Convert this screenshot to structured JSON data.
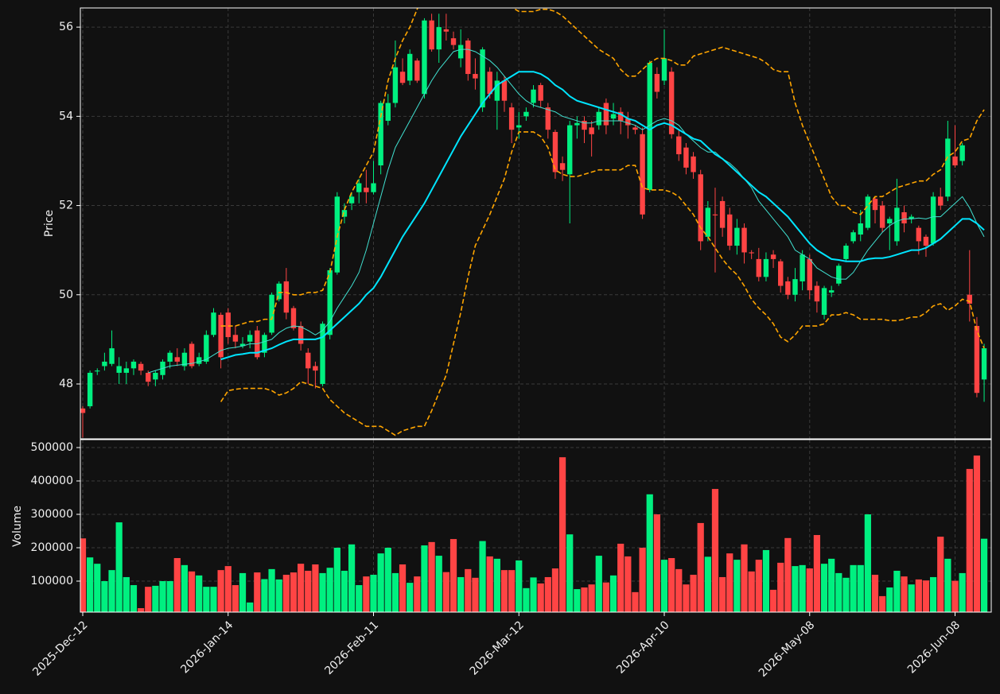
{
  "chart_data": {
    "type": "candlestick",
    "grid": true,
    "up_color": "#00f080",
    "down_color": "#ff4444",
    "ylabel": "Price",
    "ylim": [
      46.77,
      56.43
    ],
    "yticks": [
      48,
      50,
      52,
      54,
      56
    ],
    "categories": [
      "2025-Dec-12",
      null,
      null,
      null,
      null,
      null,
      null,
      null,
      null,
      null,
      null,
      null,
      null,
      null,
      null,
      null,
      null,
      null,
      null,
      null,
      "2026-Jan-14",
      null,
      null,
      null,
      null,
      null,
      null,
      null,
      null,
      null,
      null,
      null,
      null,
      null,
      null,
      null,
      null,
      null,
      null,
      null,
      "2026-Feb-11",
      null,
      null,
      null,
      null,
      null,
      null,
      null,
      null,
      null,
      null,
      null,
      null,
      null,
      null,
      null,
      null,
      null,
      null,
      null,
      "2026-Mar-12",
      null,
      null,
      null,
      null,
      null,
      null,
      null,
      null,
      null,
      null,
      null,
      null,
      null,
      null,
      null,
      null,
      null,
      null,
      null,
      "2026-Apr-10",
      null,
      null,
      null,
      null,
      null,
      null,
      null,
      null,
      null,
      null,
      null,
      null,
      null,
      null,
      null,
      null,
      null,
      null,
      null,
      "2026-May-08",
      null,
      null,
      null,
      null,
      null,
      null,
      null,
      null,
      null,
      null,
      null,
      null,
      null,
      null,
      null,
      null,
      null,
      null,
      null,
      "2026-Jun-08",
      null,
      null,
      null,
      null
    ],
    "open": [
      47.45,
      47.5,
      48.28,
      48.4,
      48.45,
      48.25,
      48.25,
      48.35,
      48.45,
      48.25,
      48.1,
      48.2,
      48.5,
      48.6,
      48.4,
      48.9,
      48.45,
      48.5,
      49.1,
      49.55,
      49.6,
      49.1,
      48.85,
      48.95,
      49.2,
      48.7,
      49.15,
      49.9,
      50.3,
      49.7,
      49.3,
      48.7,
      48.4,
      48.0,
      49.1,
      50.5,
      51.75,
      52.05,
      52.3,
      52.4,
      52.3,
      52.9,
      53.9,
      54.3,
      55.0,
      54.8,
      55.25,
      54.5,
      56.15,
      55.5,
      55.95,
      55.75,
      55.3,
      55.7,
      54.95,
      54.2,
      55.0,
      54.35,
      54.8,
      54.2,
      53.75,
      54.0,
      54.3,
      54.7,
      54.2,
      53.65,
      52.95,
      52.7,
      53.8,
      53.9,
      53.75,
      53.8,
      54.3,
      53.95,
      54.1,
      53.95,
      53.75,
      53.6,
      52.35,
      54.95,
      54.8,
      55.0,
      53.55,
      53.3,
      53.1,
      52.7,
      51.3,
      51.8,
      52.1,
      51.8,
      51.1,
      51.5,
      50.95,
      50.8,
      50.4,
      50.9,
      50.75,
      50.3,
      50.0,
      50.3,
      50.8,
      50.2,
      49.55,
      50.05,
      50.25,
      50.8,
      51.2,
      51.35,
      51.5,
      52.15,
      52.0,
      51.6,
      51.2,
      51.85,
      51.7,
      51.5,
      51.3,
      51.15,
      52.2,
      52.2,
      53.1,
      53.0,
      50.0,
      49.3,
      48.1
    ],
    "high": [
      47.5,
      48.3,
      48.35,
      48.7,
      49.2,
      48.6,
      48.5,
      48.55,
      48.5,
      48.3,
      48.3,
      48.55,
      48.75,
      48.8,
      48.8,
      48.95,
      48.7,
      49.2,
      49.7,
      49.6,
      49.7,
      49.3,
      49.05,
      49.2,
      49.3,
      49.15,
      50.05,
      50.3,
      50.6,
      49.75,
      49.4,
      48.8,
      48.5,
      49.4,
      50.6,
      52.3,
      52.05,
      52.3,
      52.6,
      52.8,
      53.0,
      54.35,
      54.5,
      55.7,
      55.3,
      55.5,
      55.3,
      56.2,
      56.3,
      56.3,
      56.3,
      55.9,
      55.95,
      55.75,
      55.3,
      55.55,
      55.1,
      55.0,
      54.9,
      54.3,
      54.1,
      54.2,
      54.7,
      54.75,
      54.3,
      53.7,
      53.1,
      53.9,
      54.0,
      54.0,
      53.9,
      54.2,
      54.4,
      54.3,
      54.2,
      54.1,
      53.8,
      53.75,
      55.25,
      55.1,
      55.95,
      55.1,
      53.7,
      53.4,
      53.2,
      52.8,
      52.1,
      52.4,
      52.2,
      51.95,
      51.7,
      51.6,
      51.0,
      51.05,
      50.95,
      51.0,
      50.8,
      50.4,
      50.6,
      51.0,
      50.9,
      50.3,
      50.2,
      50.2,
      50.7,
      51.15,
      51.45,
      51.9,
      52.25,
      52.2,
      52.1,
      51.75,
      52.6,
      52.0,
      51.8,
      51.55,
      51.35,
      52.3,
      52.4,
      53.9,
      53.8,
      53.4,
      51.0,
      49.5,
      48.9
    ],
    "low": [
      46.8,
      47.45,
      48.2,
      48.3,
      48.4,
      48.0,
      48.0,
      48.2,
      48.2,
      47.95,
      47.95,
      48.1,
      48.35,
      48.4,
      48.3,
      48.35,
      48.4,
      48.45,
      49.05,
      48.35,
      48.9,
      48.8,
      48.8,
      48.8,
      48.55,
      48.6,
      49.1,
      49.85,
      49.45,
      49.2,
      48.75,
      48.0,
      47.9,
      47.95,
      49.0,
      50.45,
      51.6,
      51.9,
      52.05,
      52.05,
      52.25,
      52.7,
      53.8,
      54.2,
      54.7,
      54.7,
      54.75,
      54.4,
      55.45,
      55.2,
      55.7,
      55.5,
      55.1,
      54.8,
      54.6,
      54.1,
      54.4,
      53.7,
      54.1,
      53.4,
      53.5,
      53.9,
      54.2,
      54.2,
      53.5,
      52.6,
      52.55,
      51.6,
      53.5,
      53.4,
      53.1,
      53.7,
      53.6,
      53.8,
      53.6,
      53.5,
      53.6,
      51.7,
      52.3,
      54.4,
      54.7,
      53.5,
      53.0,
      52.7,
      52.6,
      51.0,
      51.2,
      50.5,
      51.3,
      51.0,
      50.9,
      50.7,
      50.8,
      50.3,
      50.3,
      50.6,
      50.05,
      49.9,
      49.85,
      50.1,
      49.9,
      49.6,
      49.45,
      49.95,
      50.2,
      50.75,
      51.15,
      51.2,
      51.45,
      51.6,
      51.4,
      51.0,
      51.1,
      51.4,
      51.6,
      50.9,
      50.85,
      51.1,
      51.9,
      52.1,
      52.85,
      52.9,
      49.4,
      47.7,
      47.6
    ],
    "close": [
      47.35,
      48.25,
      48.3,
      48.5,
      48.8,
      48.4,
      48.35,
      48.5,
      48.3,
      48.05,
      48.25,
      48.5,
      48.7,
      48.5,
      48.7,
      48.4,
      48.6,
      49.1,
      49.6,
      48.6,
      49.05,
      48.95,
      48.9,
      49.1,
      48.6,
      49.1,
      50.0,
      50.25,
      49.6,
      49.25,
      48.9,
      48.35,
      48.3,
      49.35,
      50.55,
      52.2,
      51.9,
      52.2,
      52.5,
      52.3,
      52.5,
      54.3,
      54.3,
      55.1,
      54.75,
      55.4,
      54.8,
      56.15,
      55.5,
      56.0,
      55.9,
      55.6,
      55.6,
      54.95,
      54.85,
      55.5,
      54.5,
      54.8,
      54.35,
      53.7,
      53.8,
      54.1,
      54.6,
      54.35,
      53.7,
      52.75,
      52.8,
      53.8,
      53.85,
      53.7,
      53.6,
      54.1,
      53.8,
      54.05,
      53.9,
      53.8,
      53.7,
      51.8,
      55.2,
      54.55,
      55.3,
      53.6,
      53.15,
      52.85,
      52.75,
      51.2,
      51.95,
      51.78,
      51.5,
      51.1,
      51.5,
      50.95,
      50.93,
      50.4,
      50.8,
      50.8,
      50.2,
      50.0,
      50.35,
      50.9,
      50.1,
      49.85,
      50.15,
      50.1,
      50.65,
      51.1,
      51.4,
      51.6,
      52.2,
      51.9,
      51.5,
      51.7,
      51.95,
      51.6,
      51.75,
      51.2,
      51.1,
      52.2,
      52.0,
      53.5,
      52.9,
      53.35,
      49.8,
      47.8,
      48.8
    ],
    "overlays": [
      {
        "color": "#40e0d0",
        "width": 1,
        "style": "solid",
        "values": [
          null,
          null,
          null,
          null,
          null,
          null,
          null,
          null,
          null,
          48.25,
          48.3,
          48.35,
          48.4,
          48.42,
          48.44,
          48.46,
          48.5,
          48.55,
          48.65,
          48.75,
          48.8,
          48.82,
          48.85,
          48.9,
          48.9,
          48.95,
          49.0,
          49.15,
          49.25,
          49.3,
          49.28,
          49.2,
          49.1,
          49.2,
          49.4,
          49.7,
          49.95,
          50.2,
          50.5,
          51.0,
          51.6,
          52.2,
          52.8,
          53.3,
          53.6,
          53.9,
          54.2,
          54.5,
          54.8,
          55.05,
          55.25,
          55.45,
          55.5,
          55.5,
          55.45,
          55.35,
          55.25,
          55.1,
          54.9,
          54.7,
          54.5,
          54.35,
          54.25,
          54.2,
          54.15,
          54.1,
          54.0,
          53.95,
          53.9,
          53.85,
          53.85,
          53.9,
          53.9,
          53.9,
          53.9,
          53.85,
          53.8,
          53.7,
          53.8,
          53.9,
          53.95,
          53.9,
          53.8,
          53.6,
          53.45,
          53.3,
          53.2,
          53.2,
          53.05,
          52.95,
          52.8,
          52.6,
          52.4,
          52.1,
          51.9,
          51.7,
          51.5,
          51.3,
          51.0,
          50.9,
          50.8,
          50.6,
          50.5,
          50.4,
          50.35,
          50.35,
          50.5,
          50.75,
          51.0,
          51.2,
          51.4,
          51.55,
          51.65,
          51.7,
          51.7,
          51.72,
          51.7,
          51.75,
          51.75,
          51.9,
          52.05,
          52.2,
          51.95,
          51.6,
          51.3
        ]
      },
      {
        "color": "#00e5ff",
        "width": 2,
        "style": "solid",
        "values": [
          null,
          null,
          null,
          null,
          null,
          null,
          null,
          null,
          null,
          null,
          null,
          null,
          null,
          null,
          null,
          null,
          null,
          null,
          null,
          48.55,
          48.6,
          48.65,
          48.67,
          48.7,
          48.7,
          48.75,
          48.8,
          48.88,
          48.95,
          49.0,
          49.0,
          49.0,
          49.0,
          49.05,
          49.2,
          49.35,
          49.5,
          49.65,
          49.8,
          50.0,
          50.15,
          50.4,
          50.7,
          51.0,
          51.3,
          51.55,
          51.8,
          52.05,
          52.35,
          52.65,
          52.95,
          53.25,
          53.55,
          53.8,
          54.05,
          54.3,
          54.5,
          54.7,
          54.8,
          54.9,
          55.0,
          55.0,
          55.0,
          54.95,
          54.85,
          54.7,
          54.6,
          54.45,
          54.35,
          54.3,
          54.25,
          54.2,
          54.15,
          54.1,
          54.05,
          53.95,
          53.9,
          53.8,
          53.7,
          53.8,
          53.85,
          53.8,
          53.7,
          53.6,
          53.5,
          53.45,
          53.3,
          53.15,
          53.05,
          52.9,
          52.75,
          52.6,
          52.45,
          52.3,
          52.2,
          52.05,
          51.9,
          51.75,
          51.55,
          51.35,
          51.15,
          51.0,
          50.9,
          50.8,
          50.78,
          50.75,
          50.75,
          50.75,
          50.8,
          50.82,
          50.82,
          50.85,
          50.9,
          50.95,
          51.0,
          51.0,
          51.05,
          51.15,
          51.25,
          51.4,
          51.55,
          51.7,
          51.7,
          51.6,
          51.45
        ]
      },
      {
        "color": "#ffa500",
        "width": 1.6,
        "style": "dashed",
        "values": [
          null,
          null,
          null,
          null,
          null,
          null,
          null,
          null,
          null,
          null,
          null,
          null,
          null,
          null,
          null,
          null,
          null,
          null,
          null,
          49.3,
          49.3,
          49.3,
          49.35,
          49.4,
          49.4,
          49.45,
          49.45,
          50.05,
          50.05,
          50.0,
          50.0,
          50.05,
          50.05,
          50.1,
          50.5,
          51.3,
          51.9,
          52.3,
          52.6,
          52.9,
          53.2,
          54.0,
          54.8,
          55.3,
          55.7,
          56.0,
          56.4,
          56.8,
          57.1,
          57.4,
          57.6,
          57.7,
          57.7,
          57.6,
          57.4,
          57.2,
          57.0,
          56.8,
          56.6,
          56.45,
          56.35,
          56.35,
          56.35,
          56.4,
          56.4,
          56.35,
          56.25,
          56.1,
          55.95,
          55.8,
          55.65,
          55.5,
          55.4,
          55.3,
          55.05,
          54.9,
          54.9,
          55.05,
          55.2,
          55.3,
          55.3,
          55.25,
          55.15,
          55.15,
          55.35,
          55.4,
          55.45,
          55.5,
          55.55,
          55.5,
          55.45,
          55.4,
          55.35,
          55.3,
          55.2,
          55.05,
          55.0,
          55.0,
          54.3,
          53.8,
          53.4,
          53.0,
          52.6,
          52.2,
          52.0,
          52.0,
          51.85,
          51.8,
          52.0,
          52.2,
          52.2,
          52.3,
          52.4,
          52.45,
          52.5,
          52.55,
          52.55,
          52.7,
          52.8,
          53.1,
          53.2,
          53.45,
          53.5,
          53.9,
          54.15
        ]
      },
      {
        "color": "#ffa500",
        "width": 1.6,
        "style": "dashed",
        "values": [
          null,
          null,
          null,
          null,
          null,
          null,
          null,
          null,
          null,
          null,
          null,
          null,
          null,
          null,
          null,
          null,
          null,
          null,
          null,
          47.6,
          47.85,
          47.88,
          47.9,
          47.9,
          47.9,
          47.9,
          47.85,
          47.75,
          47.8,
          47.9,
          48.05,
          48.0,
          47.95,
          47.9,
          47.65,
          47.5,
          47.35,
          47.25,
          47.15,
          47.05,
          47.05,
          47.05,
          46.95,
          46.85,
          46.95,
          47.0,
          47.05,
          47.05,
          47.4,
          47.8,
          48.2,
          48.9,
          49.6,
          50.4,
          51.1,
          51.45,
          51.8,
          52.2,
          52.6,
          53.2,
          53.65,
          53.65,
          53.65,
          53.55,
          53.3,
          52.8,
          52.7,
          52.65,
          52.65,
          52.7,
          52.75,
          52.8,
          52.8,
          52.8,
          52.8,
          52.9,
          52.9,
          52.4,
          52.35,
          52.35,
          52.35,
          52.3,
          52.2,
          52.0,
          51.8,
          51.5,
          51.3,
          51.05,
          50.8,
          50.6,
          50.45,
          50.2,
          49.9,
          49.7,
          49.55,
          49.35,
          49.05,
          48.95,
          49.1,
          49.3,
          49.3,
          49.3,
          49.35,
          49.55,
          49.55,
          49.6,
          49.55,
          49.45,
          49.45,
          49.45,
          49.45,
          49.42,
          49.42,
          49.45,
          49.5,
          49.5,
          49.6,
          49.75,
          49.8,
          49.65,
          49.75,
          49.9,
          49.85,
          49.2,
          48.8
        ]
      }
    ],
    "volume": {
      "ylabel": "Volume",
      "ylim": [
        7143,
        523810
      ],
      "yticks": [
        100000,
        200000,
        300000,
        400000,
        500000
      ],
      "values": [
        228000,
        171000,
        152000,
        100000,
        133000,
        276000,
        112000,
        88000,
        19000,
        83000,
        86000,
        100000,
        100000,
        169000,
        148000,
        129000,
        117000,
        83000,
        83000,
        133000,
        145000,
        88000,
        124000,
        36000,
        126000,
        106000,
        136000,
        105000,
        119000,
        126000,
        152000,
        131000,
        150000,
        124000,
        140000,
        200000,
        131000,
        210000,
        88000,
        114000,
        119000,
        183000,
        200000,
        124000,
        150000,
        95000,
        114000,
        207000,
        217000,
        176000,
        127000,
        226000,
        112000,
        136000,
        110000,
        220000,
        174000,
        167000,
        133000,
        133000,
        162000,
        79000,
        111000,
        93000,
        112000,
        138000,
        471000,
        240000,
        76000,
        81000,
        90000,
        176000,
        96000,
        117000,
        212000,
        174000,
        67000,
        200000,
        360000,
        300000,
        164000,
        169000,
        136000,
        90000,
        119000,
        274000,
        173000,
        376000,
        112000,
        183000,
        164000,
        210000,
        129000,
        164000,
        193000,
        74000,
        155000,
        229000,
        145000,
        148000,
        138000,
        238000,
        152000,
        167000,
        124000,
        110000,
        148000,
        148000,
        300000,
        119000,
        55000,
        81000,
        131000,
        114000,
        90000,
        105000,
        102000,
        112000,
        233000,
        167000,
        101000,
        124000,
        436000,
        476000,
        227000
      ]
    }
  }
}
